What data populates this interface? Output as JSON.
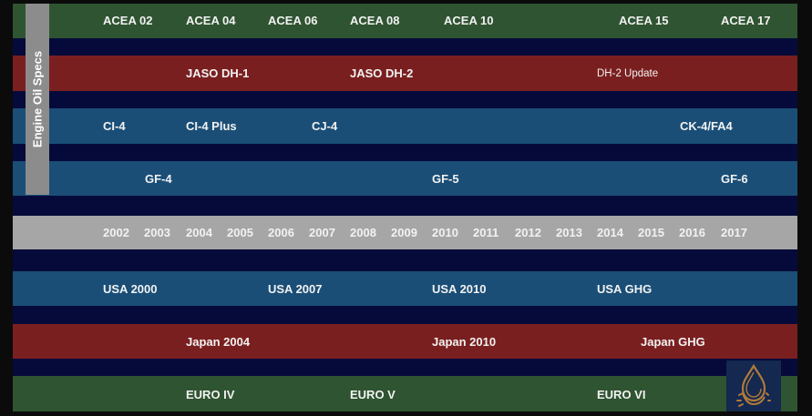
{
  "side_title": "Engine Oil Specs",
  "rows": {
    "acea": [
      "ACEA 02",
      "ACEA 04",
      "ACEA 06",
      "ACEA 08",
      "ACEA 10",
      "ACEA 15",
      "ACEA 17"
    ],
    "jaso": [
      "JASO DH-1",
      "JASO DH-2",
      "DH-2 Update"
    ],
    "api_ci": [
      "CI-4",
      "CI-4 Plus",
      "CJ-4",
      "CK-4/FA4"
    ],
    "gf": [
      "GF-4",
      "GF-5",
      "GF-6"
    ],
    "years": [
      "2002",
      "2003",
      "2004",
      "2005",
      "2006",
      "2007",
      "2008",
      "2009",
      "2010",
      "2011",
      "2012",
      "2013",
      "2014",
      "2015",
      "2016",
      "2017"
    ],
    "usa": [
      "USA 2000",
      "USA 2007",
      "USA 2010",
      "USA GHG"
    ],
    "japan": [
      "Japan 2004",
      "Japan 2010",
      "Japan GHG"
    ],
    "euro": [
      "EURO IV",
      "EURO V",
      "EURO VI"
    ]
  },
  "colors": {
    "green": "#2f5431",
    "red": "#7a1f1f",
    "blue": "#1a4e77",
    "gray": "#a6a6a6",
    "navy": "#050a3a",
    "logo_drop": "#b07a3a"
  },
  "icons": [
    "oil-drop-gear-logo-icon"
  ]
}
